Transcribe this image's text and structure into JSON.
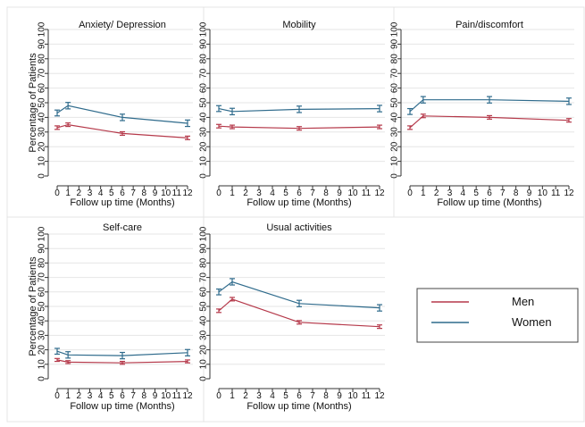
{
  "figure": {
    "ylabel": "Percentage of Patients",
    "xlabel": "Follow up time (Months)"
  },
  "legend": {
    "placement": "right",
    "entries": [
      {
        "name": "Men",
        "color": "#b5394a"
      },
      {
        "name": "Women",
        "color": "#2f6b8c"
      }
    ]
  },
  "chart_data": [
    {
      "type": "line",
      "title": "Anxiety/ Depression",
      "xlabel": "Follow up time (Months)",
      "ylabel": "Percentage of Patients",
      "x": [
        0,
        1,
        6,
        12
      ],
      "xticks": [
        0,
        1,
        2,
        3,
        4,
        5,
        6,
        7,
        8,
        9,
        10,
        11,
        12
      ],
      "ylim": [
        0,
        100
      ],
      "yticks": [
        0,
        10,
        20,
        30,
        40,
        50,
        60,
        70,
        80,
        90,
        100
      ],
      "grid": true,
      "series": [
        {
          "name": "Men",
          "values": [
            33,
            35,
            29,
            26
          ],
          "err": [
            1.2,
            1.2,
            1.2,
            1.2
          ]
        },
        {
          "name": "Women",
          "values": [
            43,
            48,
            40,
            36
          ],
          "err": [
            2,
            2.2,
            2.2,
            2.2
          ]
        }
      ]
    },
    {
      "type": "line",
      "title": "Mobility",
      "xlabel": "Follow up time (Months)",
      "ylabel": "",
      "x": [
        0,
        1,
        6,
        12
      ],
      "xticks": [
        0,
        1,
        2,
        3,
        4,
        5,
        6,
        7,
        8,
        9,
        10,
        11,
        12
      ],
      "ylim": [
        0,
        100
      ],
      "yticks": [
        0,
        10,
        20,
        30,
        40,
        50,
        60,
        70,
        80,
        90,
        100
      ],
      "grid": true,
      "series": [
        {
          "name": "Men",
          "values": [
            34,
            33.5,
            32.5,
            33.5
          ],
          "err": [
            1.2,
            1.2,
            1.2,
            1.2
          ]
        },
        {
          "name": "Women",
          "values": [
            46,
            44,
            45.5,
            46
          ],
          "err": [
            2,
            2.2,
            2.2,
            2.2
          ]
        }
      ]
    },
    {
      "type": "line",
      "title": "Pain/discomfort",
      "xlabel": "Follow up time (Months)",
      "ylabel": "",
      "x": [
        0,
        1,
        6,
        12
      ],
      "xticks": [
        0,
        1,
        2,
        3,
        4,
        5,
        6,
        7,
        8,
        9,
        10,
        11,
        12
      ],
      "ylim": [
        0,
        100
      ],
      "yticks": [
        0,
        10,
        20,
        30,
        40,
        50,
        60,
        70,
        80,
        90,
        100
      ],
      "grid": true,
      "series": [
        {
          "name": "Men",
          "values": [
            33,
            41,
            40,
            38
          ],
          "err": [
            1.2,
            1.2,
            1.2,
            1.2
          ]
        },
        {
          "name": "Women",
          "values": [
            44,
            52,
            52,
            51
          ],
          "err": [
            2,
            2.2,
            2.2,
            2.2
          ]
        }
      ]
    },
    {
      "type": "line",
      "title": "Self-care",
      "xlabel": "Follow up time (Months)",
      "ylabel": "Percentage of Patients",
      "x": [
        0,
        1,
        6,
        12
      ],
      "xticks": [
        0,
        1,
        2,
        3,
        4,
        5,
        6,
        7,
        8,
        9,
        10,
        11,
        12
      ],
      "ylim": [
        0,
        100
      ],
      "yticks": [
        0,
        10,
        20,
        30,
        40,
        50,
        60,
        70,
        80,
        90,
        100
      ],
      "grid": true,
      "series": [
        {
          "name": "Men",
          "values": [
            13,
            11.5,
            11,
            12
          ],
          "err": [
            1,
            1,
            1,
            1
          ]
        },
        {
          "name": "Women",
          "values": [
            19,
            16.5,
            16,
            18
          ],
          "err": [
            2,
            2.2,
            2.2,
            2.2
          ]
        }
      ]
    },
    {
      "type": "line",
      "title": "Usual activities",
      "xlabel": "Follow up time (Months)",
      "ylabel": "",
      "x": [
        0,
        1,
        6,
        12
      ],
      "xticks": [
        0,
        1,
        2,
        3,
        4,
        5,
        6,
        7,
        8,
        9,
        10,
        11,
        12
      ],
      "ylim": [
        0,
        100
      ],
      "yticks": [
        0,
        10,
        20,
        30,
        40,
        50,
        60,
        70,
        80,
        90,
        100
      ],
      "grid": true,
      "series": [
        {
          "name": "Men",
          "values": [
            47,
            55,
            39,
            36
          ],
          "err": [
            1.2,
            1.2,
            1.2,
            1.2
          ]
        },
        {
          "name": "Women",
          "values": [
            60,
            67,
            52,
            49
          ],
          "err": [
            2,
            2.2,
            2.2,
            2.2
          ]
        }
      ]
    }
  ]
}
